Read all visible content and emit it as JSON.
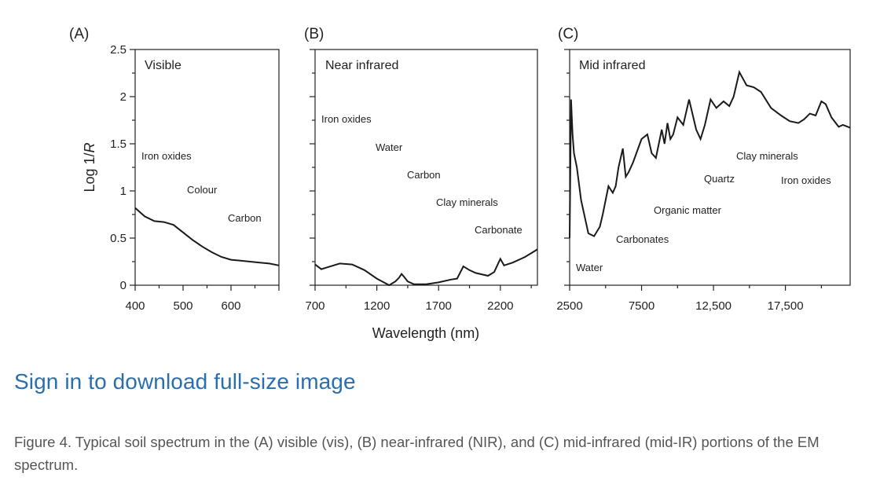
{
  "chart_data": [
    {
      "type": "line",
      "panel_label": "(A)",
      "panel_title": "Visible",
      "ylabel": "Log 1/R",
      "ylim": [
        0,
        2.5
      ],
      "yticks": [
        "0",
        "0.5",
        "1",
        "1.5",
        "2",
        "2.5"
      ],
      "xlim": [
        400,
        700
      ],
      "xticks": [
        "400",
        "500",
        "600"
      ],
      "xtick_values": [
        400,
        500,
        600
      ],
      "annotations": [
        "Iron oxides",
        "Colour",
        "Carbon"
      ],
      "series": [
        {
          "x": [
            400,
            420,
            440,
            460,
            480,
            500,
            520,
            540,
            560,
            580,
            600,
            620,
            640,
            660,
            680,
            700
          ],
          "y": [
            0.82,
            0.73,
            0.68,
            0.67,
            0.64,
            0.56,
            0.48,
            0.41,
            0.35,
            0.3,
            0.27,
            0.26,
            0.25,
            0.24,
            0.23,
            0.21
          ]
        }
      ]
    },
    {
      "type": "line",
      "panel_label": "(B)",
      "panel_title": "Near infrared",
      "ylim": [
        0,
        2.5
      ],
      "xlim": [
        700,
        2500
      ],
      "xticks": [
        "700",
        "1200",
        "1700",
        "2200"
      ],
      "xtick_values": [
        700,
        1200,
        1700,
        2200
      ],
      "annotations": [
        "Iron oxides",
        "Water",
        "Carbon",
        "Clay minerals",
        "Carbonate"
      ],
      "series": [
        {
          "x": [
            700,
            750,
            800,
            900,
            1000,
            1100,
            1200,
            1300,
            1350,
            1380,
            1400,
            1420,
            1450,
            1500,
            1600,
            1700,
            1800,
            1850,
            1900,
            1950,
            2000,
            2100,
            2150,
            2200,
            2230,
            2300,
            2400,
            2500
          ],
          "y": [
            0.22,
            0.17,
            0.19,
            0.23,
            0.22,
            0.16,
            0.07,
            0.0,
            0.04,
            0.08,
            0.12,
            0.09,
            0.04,
            0.01,
            0.01,
            0.03,
            0.06,
            0.07,
            0.2,
            0.16,
            0.13,
            0.1,
            0.14,
            0.28,
            0.21,
            0.24,
            0.3,
            0.38
          ]
        }
      ]
    },
    {
      "type": "line",
      "panel_label": "(C)",
      "panel_title": "Mid infrared",
      "ylim": [
        0,
        2.5
      ],
      "xlim": [
        2500,
        22000
      ],
      "xticks": [
        "2500",
        "7500",
        "12,500",
        "17,500"
      ],
      "xtick_values": [
        2500,
        7500,
        12500,
        17500
      ],
      "annotations": [
        "Water",
        "Carbonates",
        "Organic matter",
        "Quartz",
        "Clay minerals",
        "Iron oxides"
      ],
      "series": [
        {
          "x": [
            2500,
            2600,
            2700,
            2800,
            3000,
            3300,
            3800,
            4200,
            4600,
            4800,
            5200,
            5500,
            5700,
            5900,
            6200,
            6400,
            6600,
            6900,
            7500,
            7900,
            8200,
            8500,
            8700,
            8900,
            9100,
            9300,
            9500,
            9700,
            10000,
            10400,
            10800,
            11300,
            11600,
            11900,
            12300,
            12700,
            13200,
            13600,
            13900,
            14300,
            14800,
            15300,
            15800,
            16500,
            17200,
            17800,
            18400,
            18800,
            19200,
            19600,
            20000,
            20300,
            20700,
            21200,
            21500,
            22000
          ],
          "y": [
            0.5,
            1.97,
            1.6,
            1.4,
            1.25,
            0.9,
            0.55,
            0.52,
            0.62,
            0.75,
            1.05,
            0.98,
            1.05,
            1.25,
            1.45,
            1.15,
            1.2,
            1.3,
            1.55,
            1.6,
            1.4,
            1.35,
            1.5,
            1.65,
            1.5,
            1.72,
            1.55,
            1.6,
            1.78,
            1.7,
            1.97,
            1.65,
            1.55,
            1.7,
            1.97,
            1.88,
            1.95,
            1.9,
            2.0,
            2.26,
            2.12,
            2.1,
            2.05,
            1.88,
            1.8,
            1.74,
            1.72,
            1.76,
            1.82,
            1.8,
            1.95,
            1.92,
            1.78,
            1.68,
            1.7,
            1.67
          ]
        }
      ]
    }
  ],
  "xlabel": "Wavelength (nm)",
  "download_link": "Sign in to download full-size image",
  "caption": "Figure 4. Typical soil spectrum in the (A) visible (vis), (B) near-infrared (NIR), and (C) mid-infrared (mid-IR) portions of the EM spectrum."
}
